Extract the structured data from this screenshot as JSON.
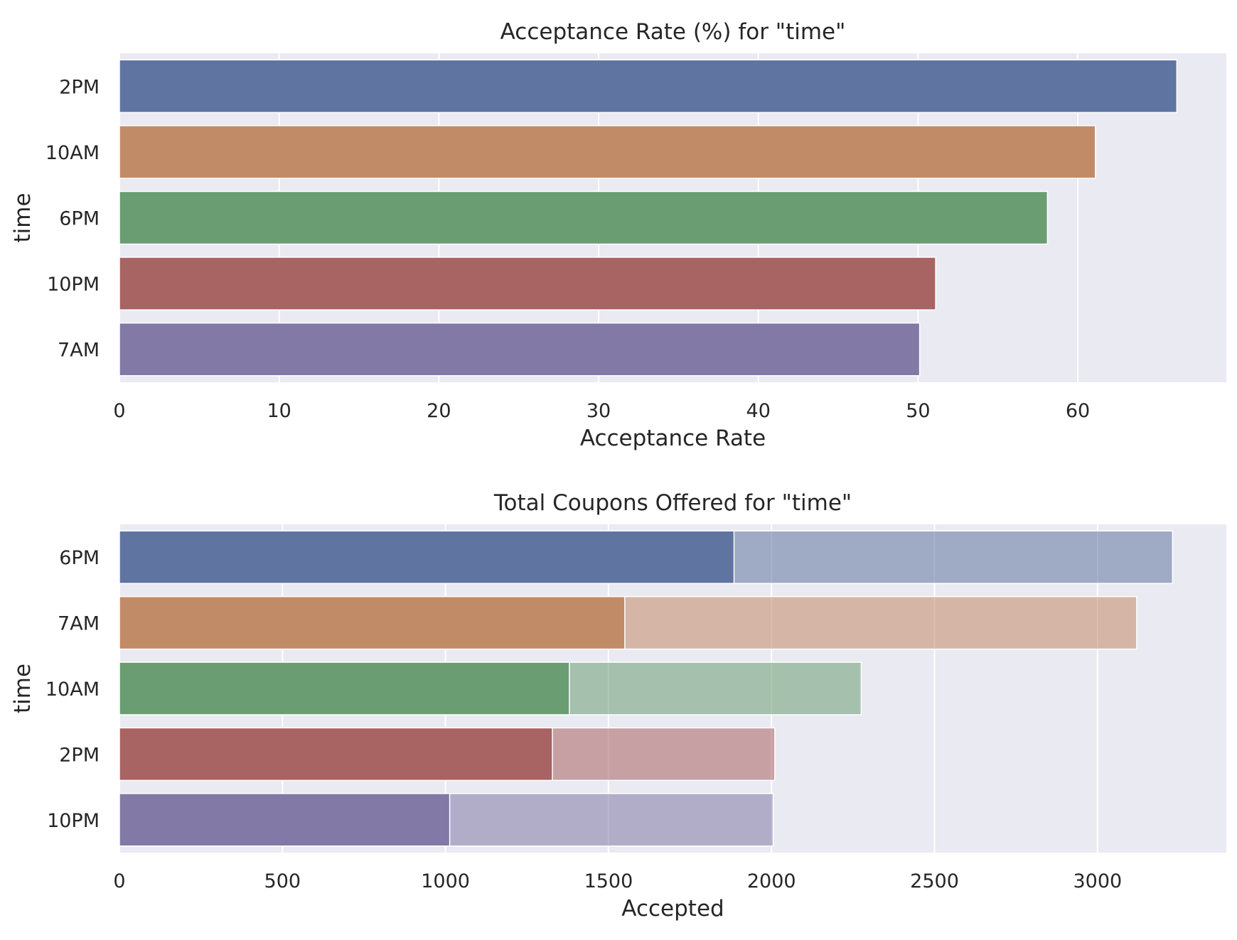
{
  "chart_data": [
    {
      "type": "bar",
      "orientation": "horizontal",
      "title": "Acceptance Rate (%) for \"time\"",
      "xlabel": "Acceptance Rate",
      "ylabel": "time",
      "categories": [
        "2PM",
        "10AM",
        "6PM",
        "10PM",
        "7AM"
      ],
      "values": [
        66.2,
        61.1,
        58.1,
        51.1,
        50.1
      ],
      "xlim": [
        0,
        69.3
      ],
      "xticks": [
        0,
        10,
        20,
        30,
        40,
        50,
        60
      ],
      "grid": true,
      "colors": [
        "#6074a1",
        "#c28b67",
        "#6b9d72",
        "#a86363",
        "#8279a6"
      ]
    },
    {
      "type": "bar",
      "orientation": "horizontal",
      "overlaid": true,
      "title": "Total Coupons Offered for \"time\"",
      "xlabel": "Accepted",
      "ylabel": "time",
      "categories": [
        "6PM",
        "7AM",
        "10AM",
        "2PM",
        "10PM"
      ],
      "series": [
        {
          "values": [
            3230,
            3120,
            2275,
            2010,
            2005
          ],
          "opacity": 0.55
        },
        {
          "values": [
            1885,
            1550,
            1380,
            1328,
            1013
          ],
          "opacity": 1
        }
      ],
      "xlim": [
        0,
        3395
      ],
      "xticks": [
        0,
        500,
        1000,
        1500,
        2000,
        2500,
        3000
      ],
      "grid": true,
      "colors": [
        "#6074a1",
        "#c28b67",
        "#6b9d72",
        "#a86363",
        "#8279a6"
      ]
    }
  ]
}
